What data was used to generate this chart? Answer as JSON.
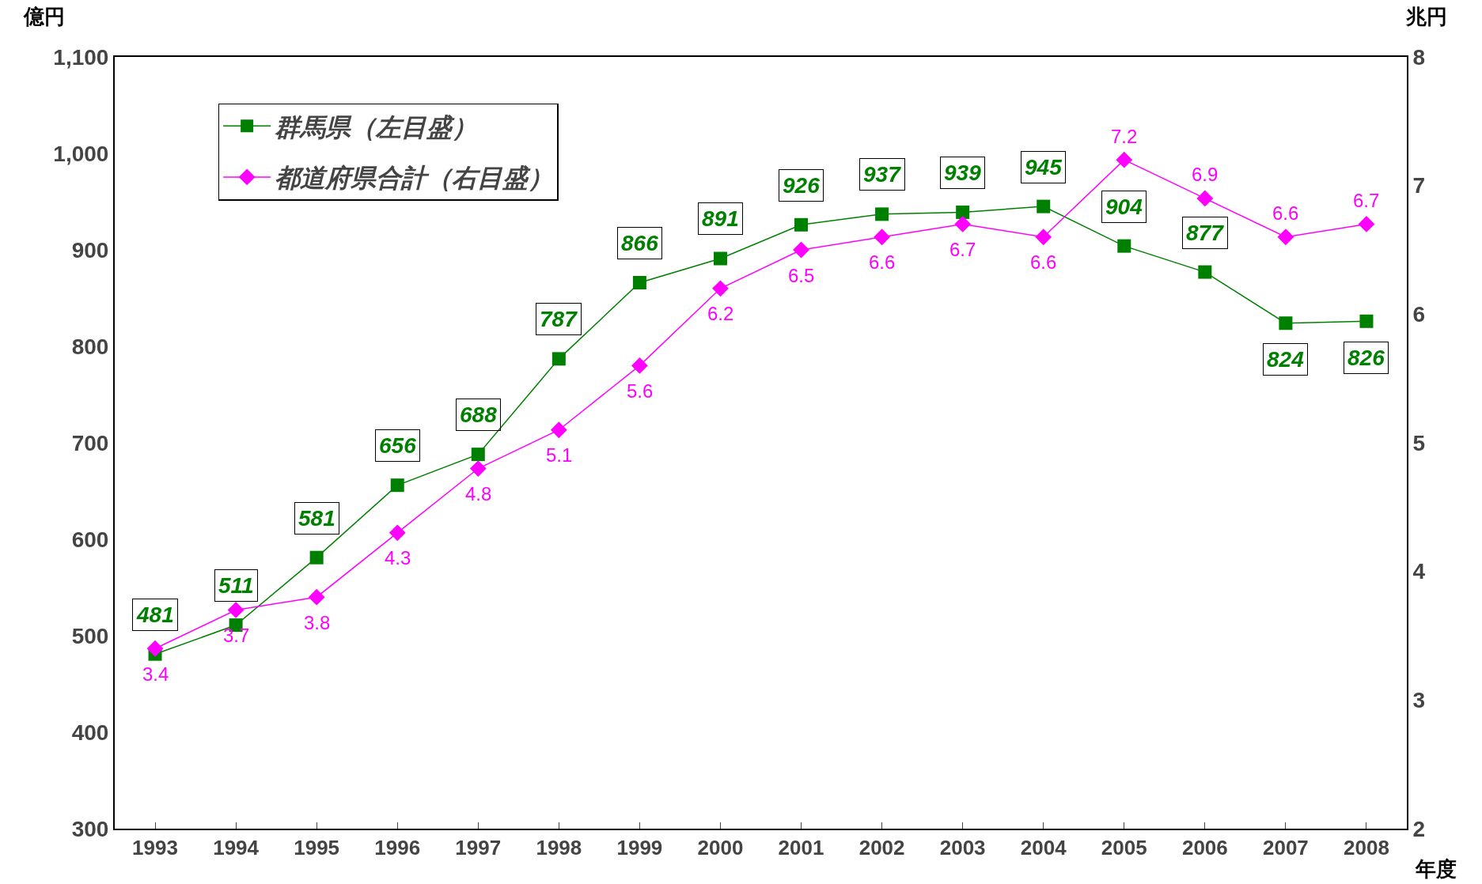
{
  "chart_data": {
    "type": "line",
    "ylabel": "億円",
    "y2label": "兆円",
    "xlabel": "年度",
    "x": [
      1993,
      1994,
      1995,
      1996,
      1997,
      1998,
      1999,
      2000,
      2001,
      2002,
      2003,
      2004,
      2005,
      2006,
      2007,
      2008
    ],
    "series": [
      {
        "name": "群馬県（左目盛）",
        "color": "#008000",
        "marker": "square",
        "values": [
          481,
          511,
          581,
          656,
          688,
          787,
          866,
          891,
          926,
          937,
          939,
          945,
          904,
          877,
          824,
          826
        ]
      },
      {
        "name": "都道府県合計（右目盛）",
        "color": "#ff00ff",
        "marker": "diamond",
        "axis": "y2",
        "values": [
          3.4,
          3.7,
          3.8,
          4.3,
          4.8,
          5.1,
          5.6,
          6.2,
          6.5,
          6.6,
          6.7,
          6.6,
          7.2,
          6.9,
          6.6,
          6.7
        ]
      }
    ],
    "xlim": [
      1992.5,
      2008.5
    ],
    "xticks": [
      1993,
      1994,
      1995,
      1996,
      1997,
      1998,
      1999,
      2000,
      2001,
      2002,
      2003,
      2004,
      2005,
      2006,
      2007,
      2008
    ],
    "ylim": [
      300,
      1100
    ],
    "yticks": [
      {
        "value": 300,
        "label": "300"
      },
      {
        "value": 400,
        "label": "400"
      },
      {
        "value": 500,
        "label": "500"
      },
      {
        "value": 600,
        "label": "600"
      },
      {
        "value": 700,
        "label": "700"
      },
      {
        "value": 800,
        "label": "800"
      },
      {
        "value": 900,
        "label": "900"
      },
      {
        "value": 1000,
        "label": "1,000"
      },
      {
        "value": 1100,
        "label": "1,100"
      }
    ],
    "y2lim": [
      2,
      8
    ],
    "y2ticks": [
      2,
      3,
      4,
      5,
      6,
      7,
      8
    ],
    "data_labels": true,
    "grid": false,
    "legend": "top left"
  }
}
